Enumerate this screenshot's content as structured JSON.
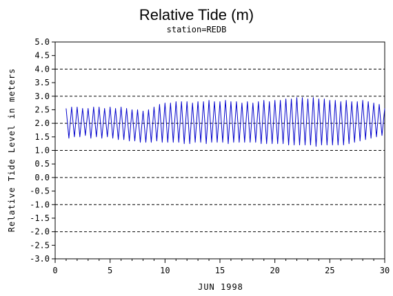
{
  "chart_data": {
    "type": "line",
    "title": "Relative Tide (m)",
    "subtitle": "station=REDB",
    "xlabel": "JUN 1998",
    "ylabel": "Relative Tide Level in meters",
    "xlim": [
      0,
      30
    ],
    "ylim": [
      -3.0,
      5.0
    ],
    "x_ticks": [
      0,
      5,
      10,
      15,
      20,
      25,
      30
    ],
    "x_tick_labels": [
      "0",
      "5",
      "10",
      "15",
      "20",
      "25",
      "30"
    ],
    "y_ticks": [
      5.0,
      4.5,
      4.0,
      3.5,
      3.0,
      2.5,
      2.0,
      1.5,
      1.0,
      0.5,
      0.0,
      -0.5,
      -1.0,
      -1.5,
      -2.0,
      -2.5,
      -3.0
    ],
    "y_tick_labels": [
      "5.0",
      "4.5",
      "4.0",
      "3.5",
      "3.0",
      "2.5",
      "2.0",
      "1.5",
      "1.0",
      "0.5",
      "0.0",
      "-0.5",
      "-1.0",
      "-1.5",
      "-2.0",
      "-2.5",
      "-3.0"
    ],
    "gridlines_y": [
      5.0,
      4.0,
      3.0,
      2.0,
      1.0,
      0.0,
      -1.0,
      -2.0,
      -3.0
    ],
    "grid_style": "dashed",
    "series": [
      {
        "color": "#0000cc",
        "x": [
          1.0,
          1.25,
          1.5,
          1.75,
          2.0,
          2.25,
          2.5,
          2.75,
          3.0,
          3.25,
          3.5,
          3.75,
          4.0,
          4.25,
          4.5,
          4.75,
          5.0,
          5.25,
          5.5,
          5.75,
          6.0,
          6.25,
          6.5,
          6.75,
          7.0,
          7.25,
          7.5,
          7.75,
          8.0,
          8.25,
          8.5,
          8.75,
          9.0,
          9.25,
          9.5,
          9.75,
          10.0,
          10.25,
          10.5,
          10.75,
          11.0,
          11.25,
          11.5,
          11.75,
          12.0,
          12.25,
          12.5,
          12.75,
          13.0,
          13.25,
          13.5,
          13.75,
          14.0,
          14.25,
          14.5,
          14.75,
          15.0,
          15.25,
          15.5,
          15.75,
          16.0,
          16.25,
          16.5,
          16.75,
          17.0,
          17.25,
          17.5,
          17.75,
          18.0,
          18.25,
          18.5,
          18.75,
          19.0,
          19.25,
          19.5,
          19.75,
          20.0,
          20.25,
          20.5,
          20.75,
          21.0,
          21.25,
          21.5,
          21.75,
          22.0,
          22.25,
          22.5,
          22.75,
          23.0,
          23.25,
          23.5,
          23.75,
          24.0,
          24.25,
          24.5,
          24.75,
          25.0,
          25.25,
          25.5,
          25.75,
          26.0,
          26.25,
          26.5,
          26.75,
          27.0,
          27.25,
          27.5,
          27.75,
          28.0,
          28.25,
          28.5,
          28.75,
          29.0,
          29.25,
          29.5,
          29.75,
          30.0
        ],
        "values": [
          2.55,
          1.45,
          2.6,
          1.5,
          2.6,
          1.5,
          2.55,
          1.55,
          2.55,
          1.45,
          2.6,
          1.5,
          2.6,
          1.45,
          2.55,
          1.5,
          2.6,
          1.45,
          2.55,
          1.4,
          2.6,
          1.4,
          2.55,
          1.35,
          2.5,
          1.35,
          2.5,
          1.3,
          2.45,
          1.3,
          2.5,
          1.3,
          2.6,
          1.35,
          2.7,
          1.3,
          2.75,
          1.3,
          2.75,
          1.3,
          2.8,
          1.3,
          2.8,
          1.25,
          2.8,
          1.25,
          2.75,
          1.3,
          2.8,
          1.3,
          2.8,
          1.25,
          2.85,
          1.3,
          2.8,
          1.3,
          2.8,
          1.3,
          2.85,
          1.25,
          2.8,
          1.3,
          2.8,
          1.3,
          2.75,
          1.3,
          2.8,
          1.3,
          2.75,
          1.3,
          2.8,
          1.25,
          2.85,
          1.25,
          2.8,
          1.25,
          2.85,
          1.25,
          2.85,
          1.25,
          2.9,
          1.2,
          2.9,
          1.2,
          2.95,
          1.2,
          2.95,
          1.2,
          2.9,
          1.2,
          2.95,
          1.15,
          2.9,
          1.2,
          2.9,
          1.2,
          2.85,
          1.2,
          2.85,
          1.2,
          2.8,
          1.2,
          2.85,
          1.25,
          2.8,
          1.3,
          2.8,
          1.35,
          2.85,
          1.4,
          2.8,
          1.45,
          2.75,
          1.5,
          2.7,
          1.55,
          2.55
        ]
      }
    ]
  }
}
